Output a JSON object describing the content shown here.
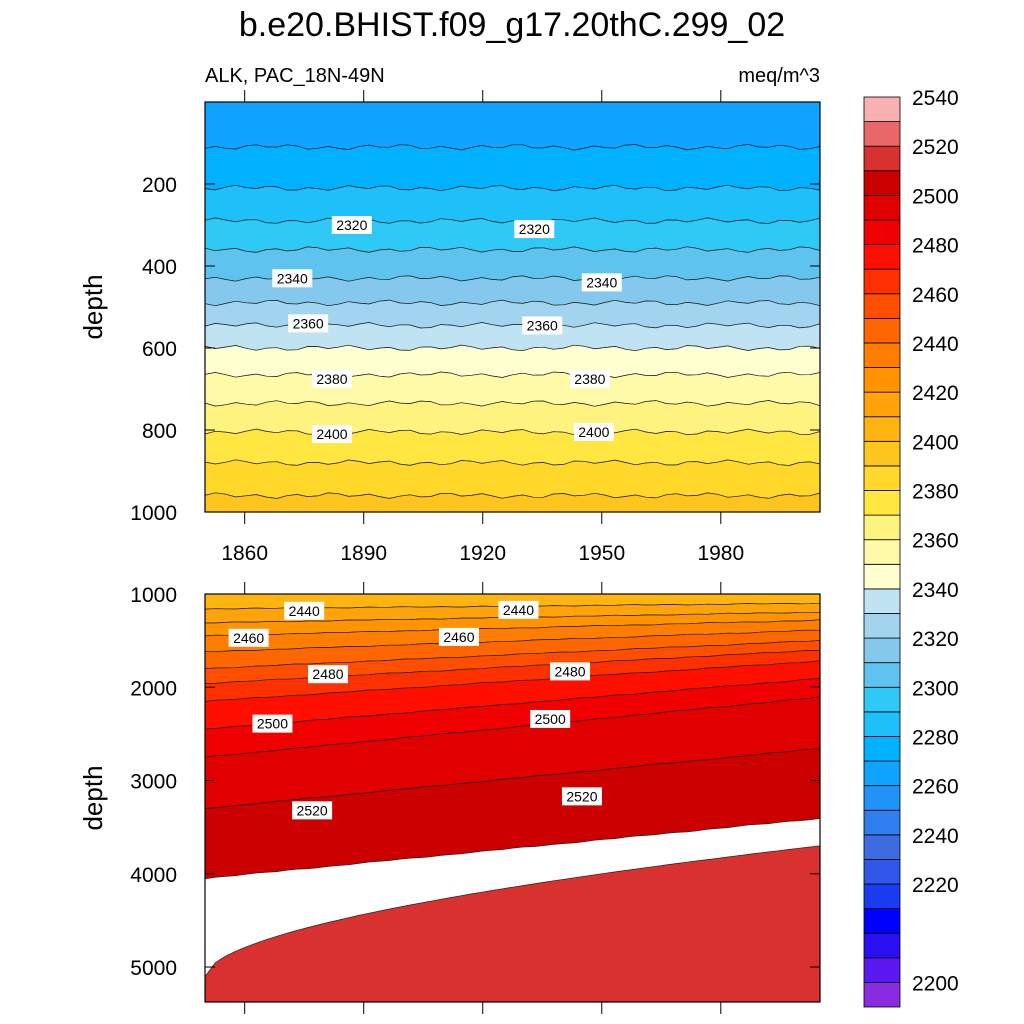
{
  "chart_data": {
    "type": "heatmap",
    "title": "b.e20.BHIST.f09_g17.20thC.299_02",
    "subtitle_left": "ALK, PAC_18N-49N",
    "subtitle_right": "meq/m^3",
    "colorbar": {
      "labels": [
        "2200",
        "2220",
        "2240",
        "2260",
        "2280",
        "2300",
        "2320",
        "2340",
        "2360",
        "2380",
        "2400",
        "2420",
        "2440",
        "2460",
        "2480",
        "2500",
        "2520",
        "2540"
      ],
      "colors": [
        "#8a2be2",
        "#5a17ef",
        "#2a0ff0",
        "#0000ff",
        "#1a3bf0",
        "#3157e8",
        "#3d6be2",
        "#2f7ef0",
        "#1f93f8",
        "#10a3ff",
        "#00b1ff",
        "#1ec0fa",
        "#2fc9f6",
        "#5fc3f0",
        "#84c9ed",
        "#a2d4ef",
        "#bfe3f2",
        "#ffffd0",
        "#fffaa8",
        "#fff380",
        "#ffe640",
        "#ffd82a",
        "#ffc51f",
        "#ffb40f",
        "#ffa30a",
        "#ff9300",
        "#ff7d00",
        "#ff6600",
        "#ff4e00",
        "#ff3000",
        "#ff0f00",
        "#f00000",
        "#e00000",
        "#cc0000",
        "#d93030",
        "#e86868",
        "#f8b0b0"
      ],
      "levels": [
        2200,
        2205,
        2210,
        2215,
        2220,
        2230,
        2240,
        2250,
        2260,
        2270,
        2280,
        2290,
        2300,
        2310,
        2320,
        2330,
        2340,
        2350,
        2360,
        2370,
        2380,
        2390,
        2400,
        2410,
        2420,
        2430,
        2440,
        2450,
        2460,
        2470,
        2480,
        2490,
        2500,
        2510,
        2520,
        2530,
        2540,
        2550
      ]
    },
    "panels": [
      {
        "x_ticks": [
          "1860",
          "1890",
          "1920",
          "1950",
          "1980"
        ],
        "x_values": [
          1860,
          1890,
          1920,
          1950,
          1980
        ],
        "xlim": [
          1850,
          2005
        ],
        "ylabel": "depth",
        "y_ticks": [
          "200",
          "400",
          "600",
          "800",
          "1000"
        ],
        "y_values": [
          200,
          400,
          600,
          800,
          1000
        ],
        "ylim": [
          0,
          1000
        ],
        "bands": [
          {
            "upper_depth": 0,
            "lower_depth": 110,
            "color": "#10a3ff"
          },
          {
            "upper_depth": 110,
            "lower_depth": 210,
            "color": "#00b1ff"
          },
          {
            "upper_depth": 210,
            "lower_depth": 290,
            "color": "#1ec0fa"
          },
          {
            "upper_depth": 290,
            "lower_depth": 360,
            "color": "#2fc9f6"
          },
          {
            "upper_depth": 360,
            "lower_depth": 430,
            "color": "#5fc3f0"
          },
          {
            "upper_depth": 430,
            "lower_depth": 490,
            "color": "#84c9ed"
          },
          {
            "upper_depth": 490,
            "lower_depth": 545,
            "color": "#a2d4ef"
          },
          {
            "upper_depth": 545,
            "lower_depth": 600,
            "color": "#bfe3f2"
          },
          {
            "upper_depth": 600,
            "lower_depth": 665,
            "color": "#ffffd0"
          },
          {
            "upper_depth": 665,
            "lower_depth": 735,
            "color": "#fffaa8"
          },
          {
            "upper_depth": 735,
            "lower_depth": 805,
            "color": "#fff380"
          },
          {
            "upper_depth": 805,
            "lower_depth": 880,
            "color": "#ffe640"
          },
          {
            "upper_depth": 880,
            "lower_depth": 960,
            "color": "#ffd82a"
          },
          {
            "upper_depth": 960,
            "lower_depth": 1000,
            "color": "#ffc51f"
          }
        ],
        "contour_labels": [
          {
            "text": "2320",
            "year": 1887,
            "depth": 300
          },
          {
            "text": "2320",
            "year": 1933,
            "depth": 310
          },
          {
            "text": "2340",
            "year": 1872,
            "depth": 430
          },
          {
            "text": "2340",
            "year": 1950,
            "depth": 440
          },
          {
            "text": "2360",
            "year": 1876,
            "depth": 540
          },
          {
            "text": "2360",
            "year": 1935,
            "depth": 545
          },
          {
            "text": "2380",
            "year": 1882,
            "depth": 675
          },
          {
            "text": "2380",
            "year": 1947,
            "depth": 675
          },
          {
            "text": "2400",
            "year": 1882,
            "depth": 810
          },
          {
            "text": "2400",
            "year": 1948,
            "depth": 805
          }
        ]
      },
      {
        "ylabel": "depth",
        "y_ticks": [
          "1000",
          "2000",
          "3000",
          "4000",
          "5000"
        ],
        "y_values": [
          1000,
          2000,
          3000,
          4000,
          5000
        ],
        "ylim": [
          1000,
          5375
        ],
        "xlim": [
          1850,
          2005
        ],
        "bands": [
          {
            "upper_depth": 1000,
            "lower_depth": 1160,
            "color": "#ffb40f"
          },
          {
            "upper_depth": 1160,
            "lower_depth": 1310,
            "color": "#ffa30a"
          },
          {
            "upper_depth": 1310,
            "lower_depth": 1450,
            "color": "#ff9300"
          },
          {
            "upper_depth": 1450,
            "lower_depth": 1620,
            "color": "#ff7d00"
          },
          {
            "upper_depth": 1620,
            "lower_depth": 1800,
            "color": "#ff6600"
          },
          {
            "upper_depth": 1800,
            "lower_depth": 1960,
            "color": "#ff4e00"
          },
          {
            "upper_depth": 1960,
            "lower_depth": 2150,
            "color": "#ff3000"
          },
          {
            "upper_depth": 2150,
            "lower_depth": 2450,
            "color": "#ff0f00"
          },
          {
            "upper_depth": 2450,
            "lower_depth": 2750,
            "color": "#f00000"
          },
          {
            "upper_depth": 2750,
            "lower_depth": 3300,
            "color": "#e00000"
          },
          {
            "upper_depth": 3300,
            "lower_depth": 4050,
            "color": "#cc0000"
          },
          {
            "upper_depth": 4050,
            "lower_depth": 5375,
            "color": "#d93030"
          }
        ],
        "contour_labels": [
          {
            "text": "2440",
            "year": 1875,
            "depth": 1180
          },
          {
            "text": "2440",
            "year": 1929,
            "depth": 1170
          },
          {
            "text": "2460",
            "year": 1861,
            "depth": 1470
          },
          {
            "text": "2460",
            "year": 1914,
            "depth": 1460
          },
          {
            "text": "2480",
            "year": 1881,
            "depth": 1860
          },
          {
            "text": "2480",
            "year": 1942,
            "depth": 1830
          },
          {
            "text": "2500",
            "year": 1867,
            "depth": 2390
          },
          {
            "text": "2500",
            "year": 1937,
            "depth": 2340
          },
          {
            "text": "2520",
            "year": 1877,
            "depth": 3320
          },
          {
            "text": "2520",
            "year": 1945,
            "depth": 3170
          }
        ]
      }
    ]
  }
}
